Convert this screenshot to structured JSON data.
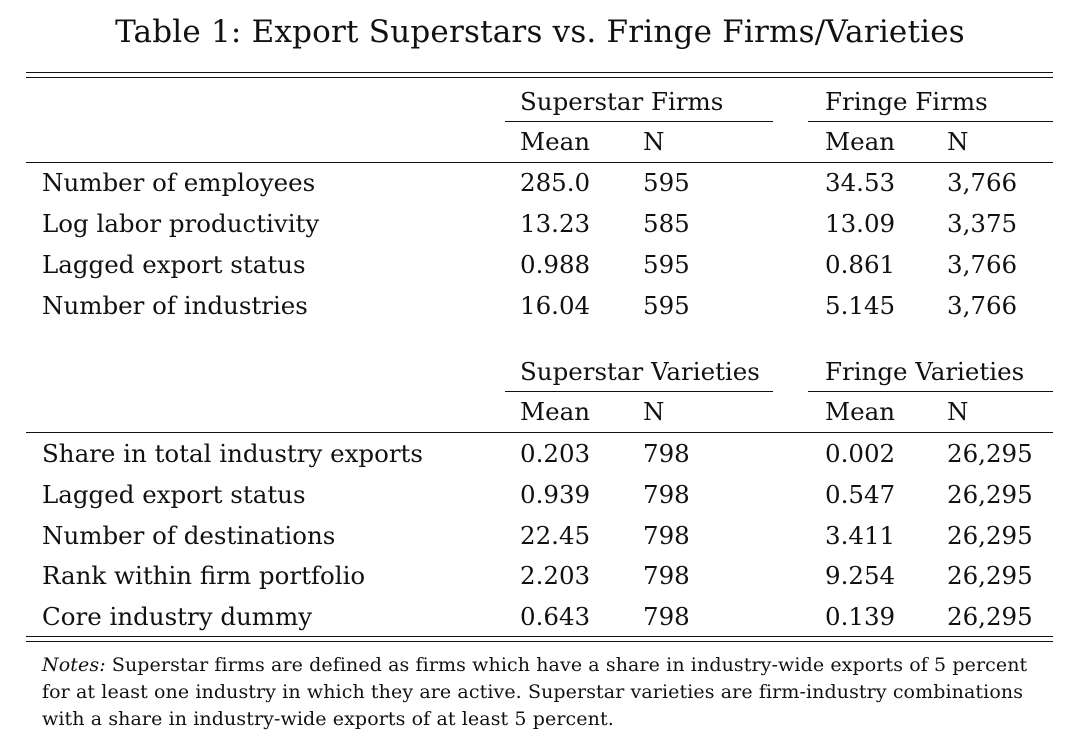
{
  "title": "Table 1: Export Superstars vs. Fringe Firms/Varieties",
  "panel1": {
    "group_left": "Superstar Firms",
    "group_right": "Fringe Firms",
    "col_mean": "Mean",
    "col_n": "N",
    "rows": [
      {
        "label": "Number of employees",
        "ss_mean": "285.0",
        "ss_n": "595",
        "fr_mean": "34.53",
        "fr_n": "3,766"
      },
      {
        "label": "Log labor productivity",
        "ss_mean": "13.23",
        "ss_n": "585",
        "fr_mean": "13.09",
        "fr_n": "3,375"
      },
      {
        "label": "Lagged export status",
        "ss_mean": "0.988",
        "ss_n": "595",
        "fr_mean": "0.861",
        "fr_n": "3,766"
      },
      {
        "label": "Number of industries",
        "ss_mean": "16.04",
        "ss_n": "595",
        "fr_mean": "5.145",
        "fr_n": "3,766"
      }
    ]
  },
  "panel2": {
    "group_left": "Superstar Varieties",
    "group_right": "Fringe Varieties",
    "col_mean": "Mean",
    "col_n": "N",
    "rows": [
      {
        "label": "Share in total industry exports",
        "ss_mean": "0.203",
        "ss_n": "798",
        "fr_mean": "0.002",
        "fr_n": "26,295"
      },
      {
        "label": "Lagged export status",
        "ss_mean": "0.939",
        "ss_n": "798",
        "fr_mean": "0.547",
        "fr_n": "26,295"
      },
      {
        "label": "Number of destinations",
        "ss_mean": "22.45",
        "ss_n": "798",
        "fr_mean": "3.411",
        "fr_n": "26,295"
      },
      {
        "label": "Rank within firm portfolio",
        "ss_mean": "2.203",
        "ss_n": "798",
        "fr_mean": "9.254",
        "fr_n": "26,295"
      },
      {
        "label": "Core industry dummy",
        "ss_mean": "0.643",
        "ss_n": "798",
        "fr_mean": "0.139",
        "fr_n": "26,295"
      }
    ]
  },
  "notes": {
    "label": "Notes:",
    "text": " Superstar firms are defined as firms which have a share in industry-wide exports of 5 percent for at least one industry in which they are active. Superstar varieties are firm-industry combinations with a share in industry-wide exports of at least 5 percent."
  }
}
